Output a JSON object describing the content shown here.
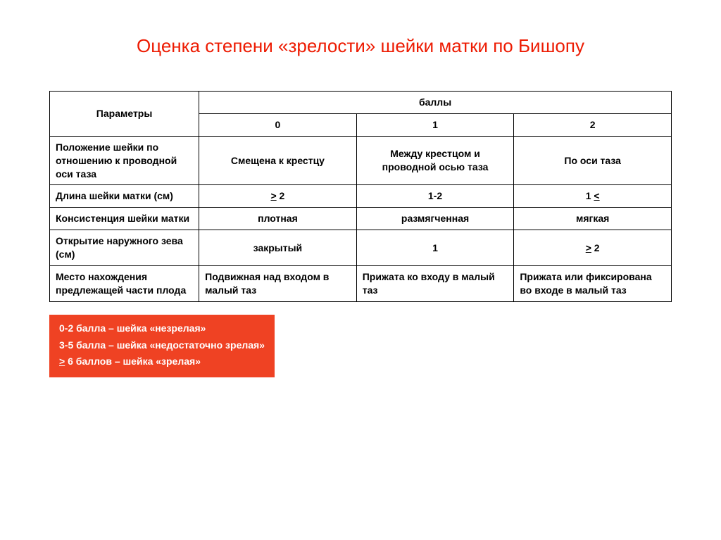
{
  "title": "Оценка степени «зрелости» шейки матки по Бишопу",
  "colors": {
    "accent": "#ed1b02",
    "legend_bg": "#ef4223",
    "text": "#000000",
    "border": "#000000",
    "background": "#ffffff"
  },
  "table": {
    "header": {
      "param": "Параметры",
      "scores_label": "баллы",
      "scores": [
        "0",
        "1",
        "2"
      ]
    },
    "column_widths_pct": [
      24,
      25.3,
      25.3,
      25.3
    ],
    "rows": [
      {
        "param": "Положение шейки по отношению к проводной оси таза",
        "cells": [
          {
            "text": "Смещена к крестцу",
            "align": "center"
          },
          {
            "text": "Между крестцом и проводной осью таза",
            "align": "center"
          },
          {
            "text": "По оси таза",
            "align": "center"
          }
        ]
      },
      {
        "param": "Длина шейки матки (см)",
        "cells": [
          {
            "text": "> 2",
            "align": "center",
            "underline_first": ">"
          },
          {
            "text": "1-2",
            "align": "center"
          },
          {
            "text": "1 <",
            "align": "center",
            "underline_last": "<"
          }
        ]
      },
      {
        "param": "Консистенция шейки матки",
        "cells": [
          {
            "text": "плотная",
            "align": "center"
          },
          {
            "text": "размягченная",
            "align": "center"
          },
          {
            "text": "мягкая",
            "align": "center"
          }
        ]
      },
      {
        "param": "Открытие наружного зева (см)",
        "cells": [
          {
            "text": "закрытый",
            "align": "center"
          },
          {
            "text": "1",
            "align": "center"
          },
          {
            "text": "> 2",
            "align": "center",
            "underline_first": ">"
          }
        ]
      },
      {
        "param": "Место нахождения предлежащей части плода",
        "cells": [
          {
            "text": "Подвижная над входом в малый таз",
            "align": "left"
          },
          {
            "text": "Прижата ко входу в малый таз",
            "align": "left"
          },
          {
            "text": "Прижата или фиксирована во входе в малый таз",
            "align": "left"
          }
        ]
      }
    ]
  },
  "legend": {
    "lines": [
      {
        "text": "0-2 балла – шейка «незрелая»"
      },
      {
        "text": "3-5 балла – шейка «недостаточно зрелая»"
      },
      {
        "prefix_underline": ">",
        "rest": " 6 баллов – шейка «зрелая»"
      }
    ]
  }
}
